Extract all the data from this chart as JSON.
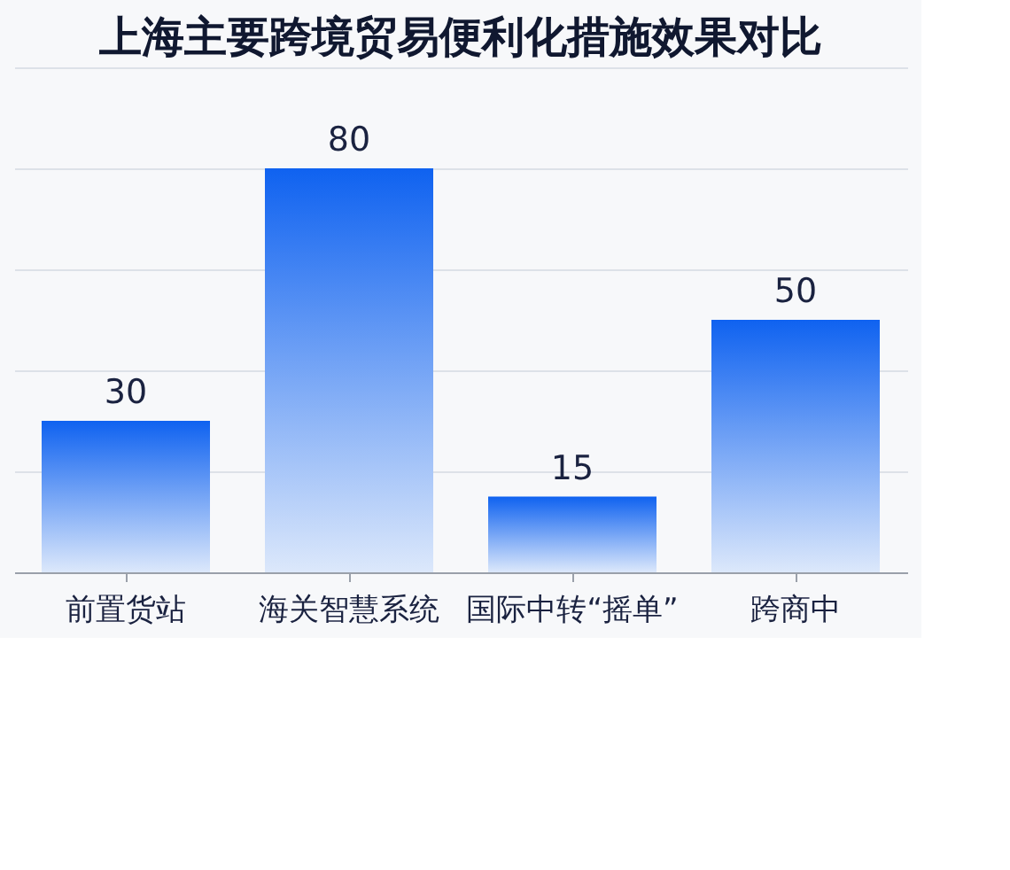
{
  "chart_data": {
    "type": "bar",
    "title": "上海主要跨境贸易便利化措施效果对比",
    "categories": [
      "前置货站",
      "海关智慧系统",
      "国际中转“摇单”",
      "跨商中"
    ],
    "values": [
      30,
      80,
      15,
      50
    ],
    "color": "#0f62f0",
    "ylim": [
      0,
      100
    ],
    "yticks": [
      {
        "value": 0,
        "label": null
      },
      {
        "value": 20,
        "label": null
      },
      {
        "value": 40,
        "label": null
      },
      {
        "value": 60,
        "label": null
      },
      {
        "value": 80,
        "label": null
      },
      {
        "value": 100,
        "label": null
      }
    ],
    "grid": "y",
    "tick_labels": "x",
    "data_labels": true
  }
}
